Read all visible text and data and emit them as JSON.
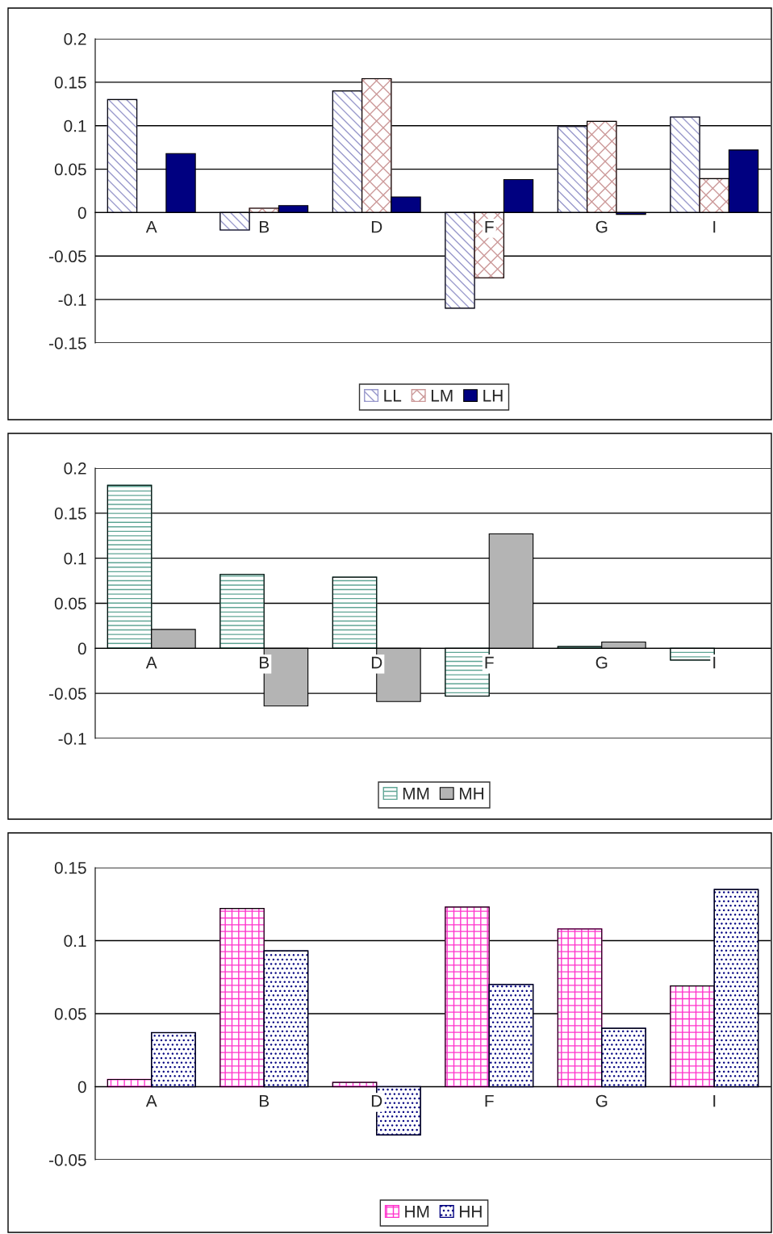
{
  "chart_data": [
    {
      "type": "bar",
      "categories": [
        "A",
        "B",
        "D",
        "F",
        "G",
        "I"
      ],
      "series": [
        {
          "name": "LL",
          "color": "#9999cc",
          "values": [
            0.13,
            -0.02,
            0.14,
            -0.11,
            0.099,
            0.11
          ]
        },
        {
          "name": "LM",
          "color": "#cc9999",
          "values": [
            null,
            0.005,
            0.154,
            -0.075,
            0.105,
            0.039
          ]
        },
        {
          "name": "LH",
          "color": "#000080",
          "values": [
            0.068,
            0.008,
            0.018,
            0.038,
            -0.002,
            0.072
          ]
        }
      ],
      "ylim": [
        -0.15,
        0.2
      ],
      "yticks": [
        -0.15,
        -0.1,
        -0.05,
        0,
        0.05,
        0.1,
        0.15,
        0.2
      ],
      "grid": "y",
      "legend": "bottom"
    },
    {
      "type": "bar",
      "categories": [
        "A",
        "B",
        "D",
        "F",
        "G",
        "I"
      ],
      "series": [
        {
          "name": "MM",
          "color": "#5fa595",
          "values": [
            0.181,
            0.082,
            0.079,
            -0.053,
            0.002,
            -0.013
          ]
        },
        {
          "name": "MH",
          "color": "#b4b4b4",
          "values": [
            0.021,
            -0.064,
            -0.059,
            0.127,
            0.007,
            null
          ]
        }
      ],
      "ylim": [
        -0.1,
        0.2
      ],
      "yticks": [
        -0.1,
        -0.05,
        0,
        0.05,
        0.1,
        0.15,
        0.2
      ],
      "grid": "y",
      "legend": "bottom"
    },
    {
      "type": "bar",
      "categories": [
        "A",
        "B",
        "D",
        "F",
        "G",
        "I"
      ],
      "series": [
        {
          "name": "HM",
          "color": "#ff33cc",
          "values": [
            0.005,
            0.122,
            0.003,
            0.123,
            0.108,
            0.069
          ]
        },
        {
          "name": "HH",
          "color": "#000080",
          "values": [
            0.037,
            0.093,
            -0.033,
            0.07,
            0.04,
            0.135
          ]
        }
      ],
      "ylim": [
        -0.05,
        0.15
      ],
      "yticks": [
        -0.05,
        0,
        0.05,
        0.1,
        0.15
      ],
      "grid": "y",
      "legend": "bottom"
    }
  ]
}
